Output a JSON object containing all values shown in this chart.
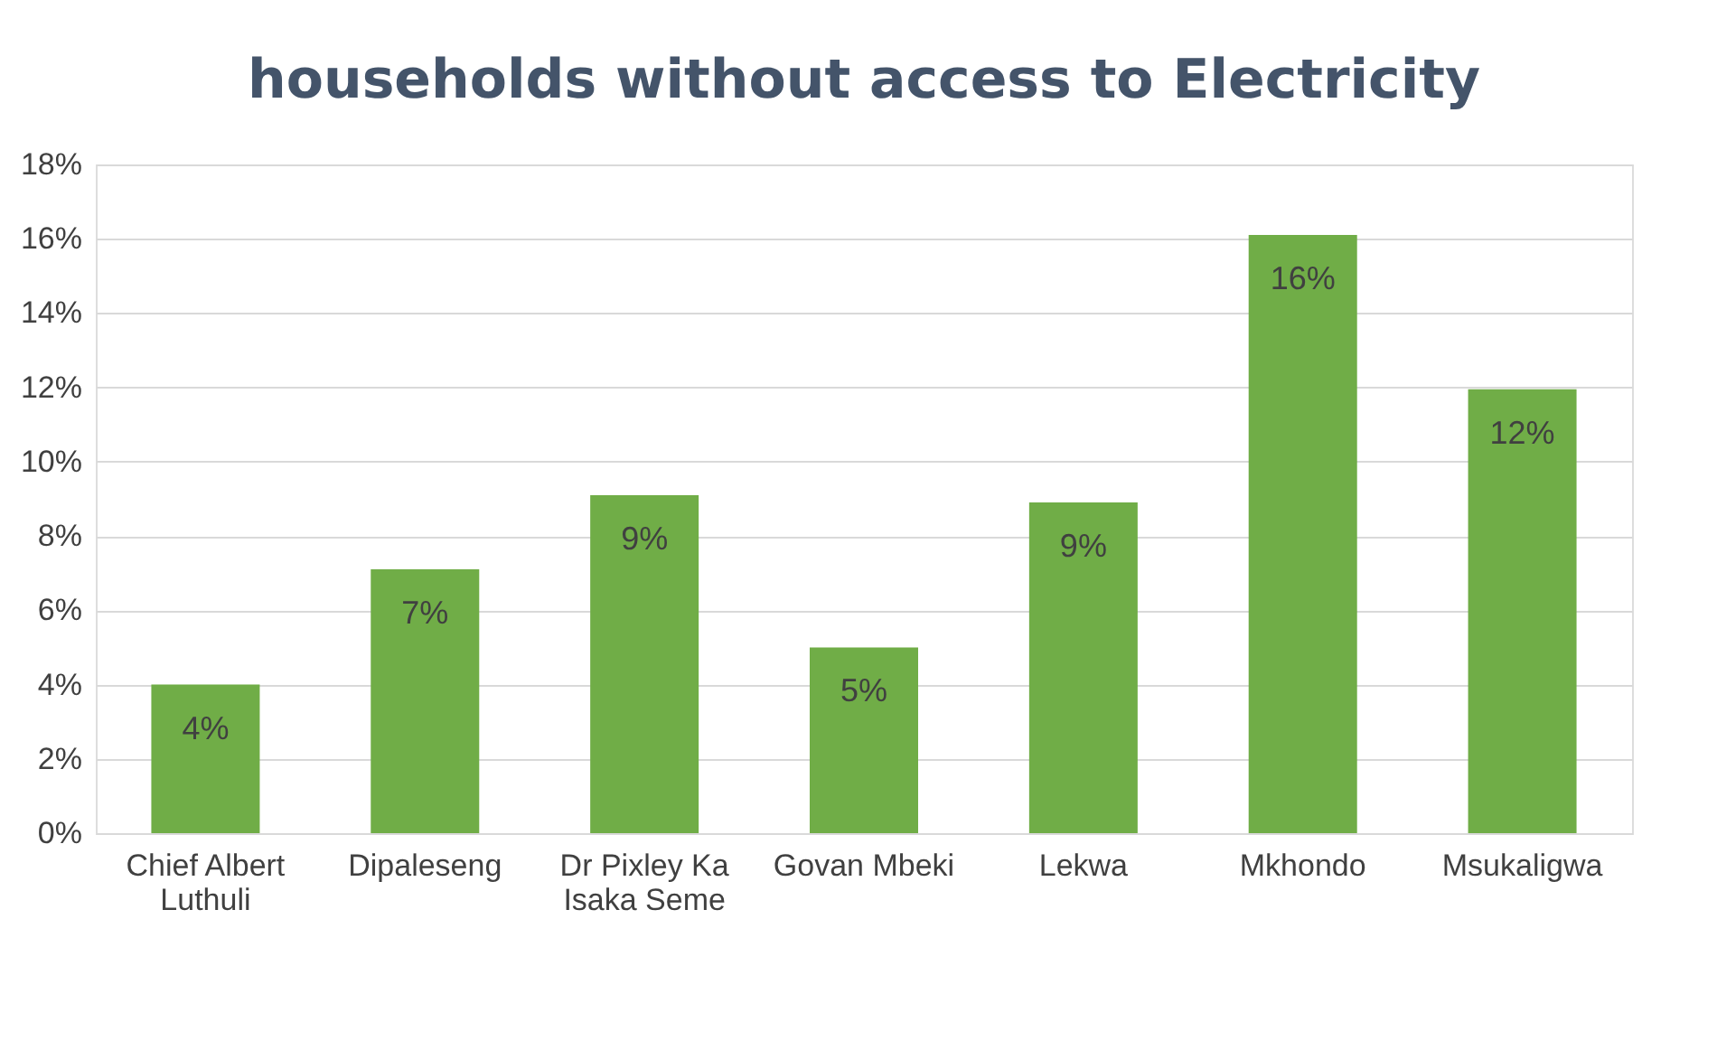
{
  "chart_data": {
    "type": "bar",
    "title": "households without access to Electricity",
    "categories": [
      "Chief Albert Luthuli",
      "Dipaleseng",
      "Dr Pixley Ka Isaka Seme",
      "Govan Mbeki",
      "Lekwa",
      "Mkhondo",
      "Msukaligwa"
    ],
    "values": [
      4.0,
      7.1,
      9.1,
      5.0,
      8.9,
      16.1,
      11.95
    ],
    "value_labels": [
      "4%",
      "7%",
      "9%",
      "5%",
      "9%",
      "16%",
      "12%"
    ],
    "color": "#70ad47",
    "ylim": [
      0,
      18
    ],
    "yticks": [
      {
        "value": 0,
        "label": "0%"
      },
      {
        "value": 2,
        "label": "2%"
      },
      {
        "value": 4,
        "label": "4%"
      },
      {
        "value": 6,
        "label": "6%"
      },
      {
        "value": 8,
        "label": "8%"
      },
      {
        "value": 10,
        "label": "10%"
      },
      {
        "value": 12,
        "label": "12%"
      },
      {
        "value": 14,
        "label": "14%"
      },
      {
        "value": 16,
        "label": "16%"
      },
      {
        "value": 18,
        "label": "18%"
      }
    ],
    "grid": "y"
  }
}
